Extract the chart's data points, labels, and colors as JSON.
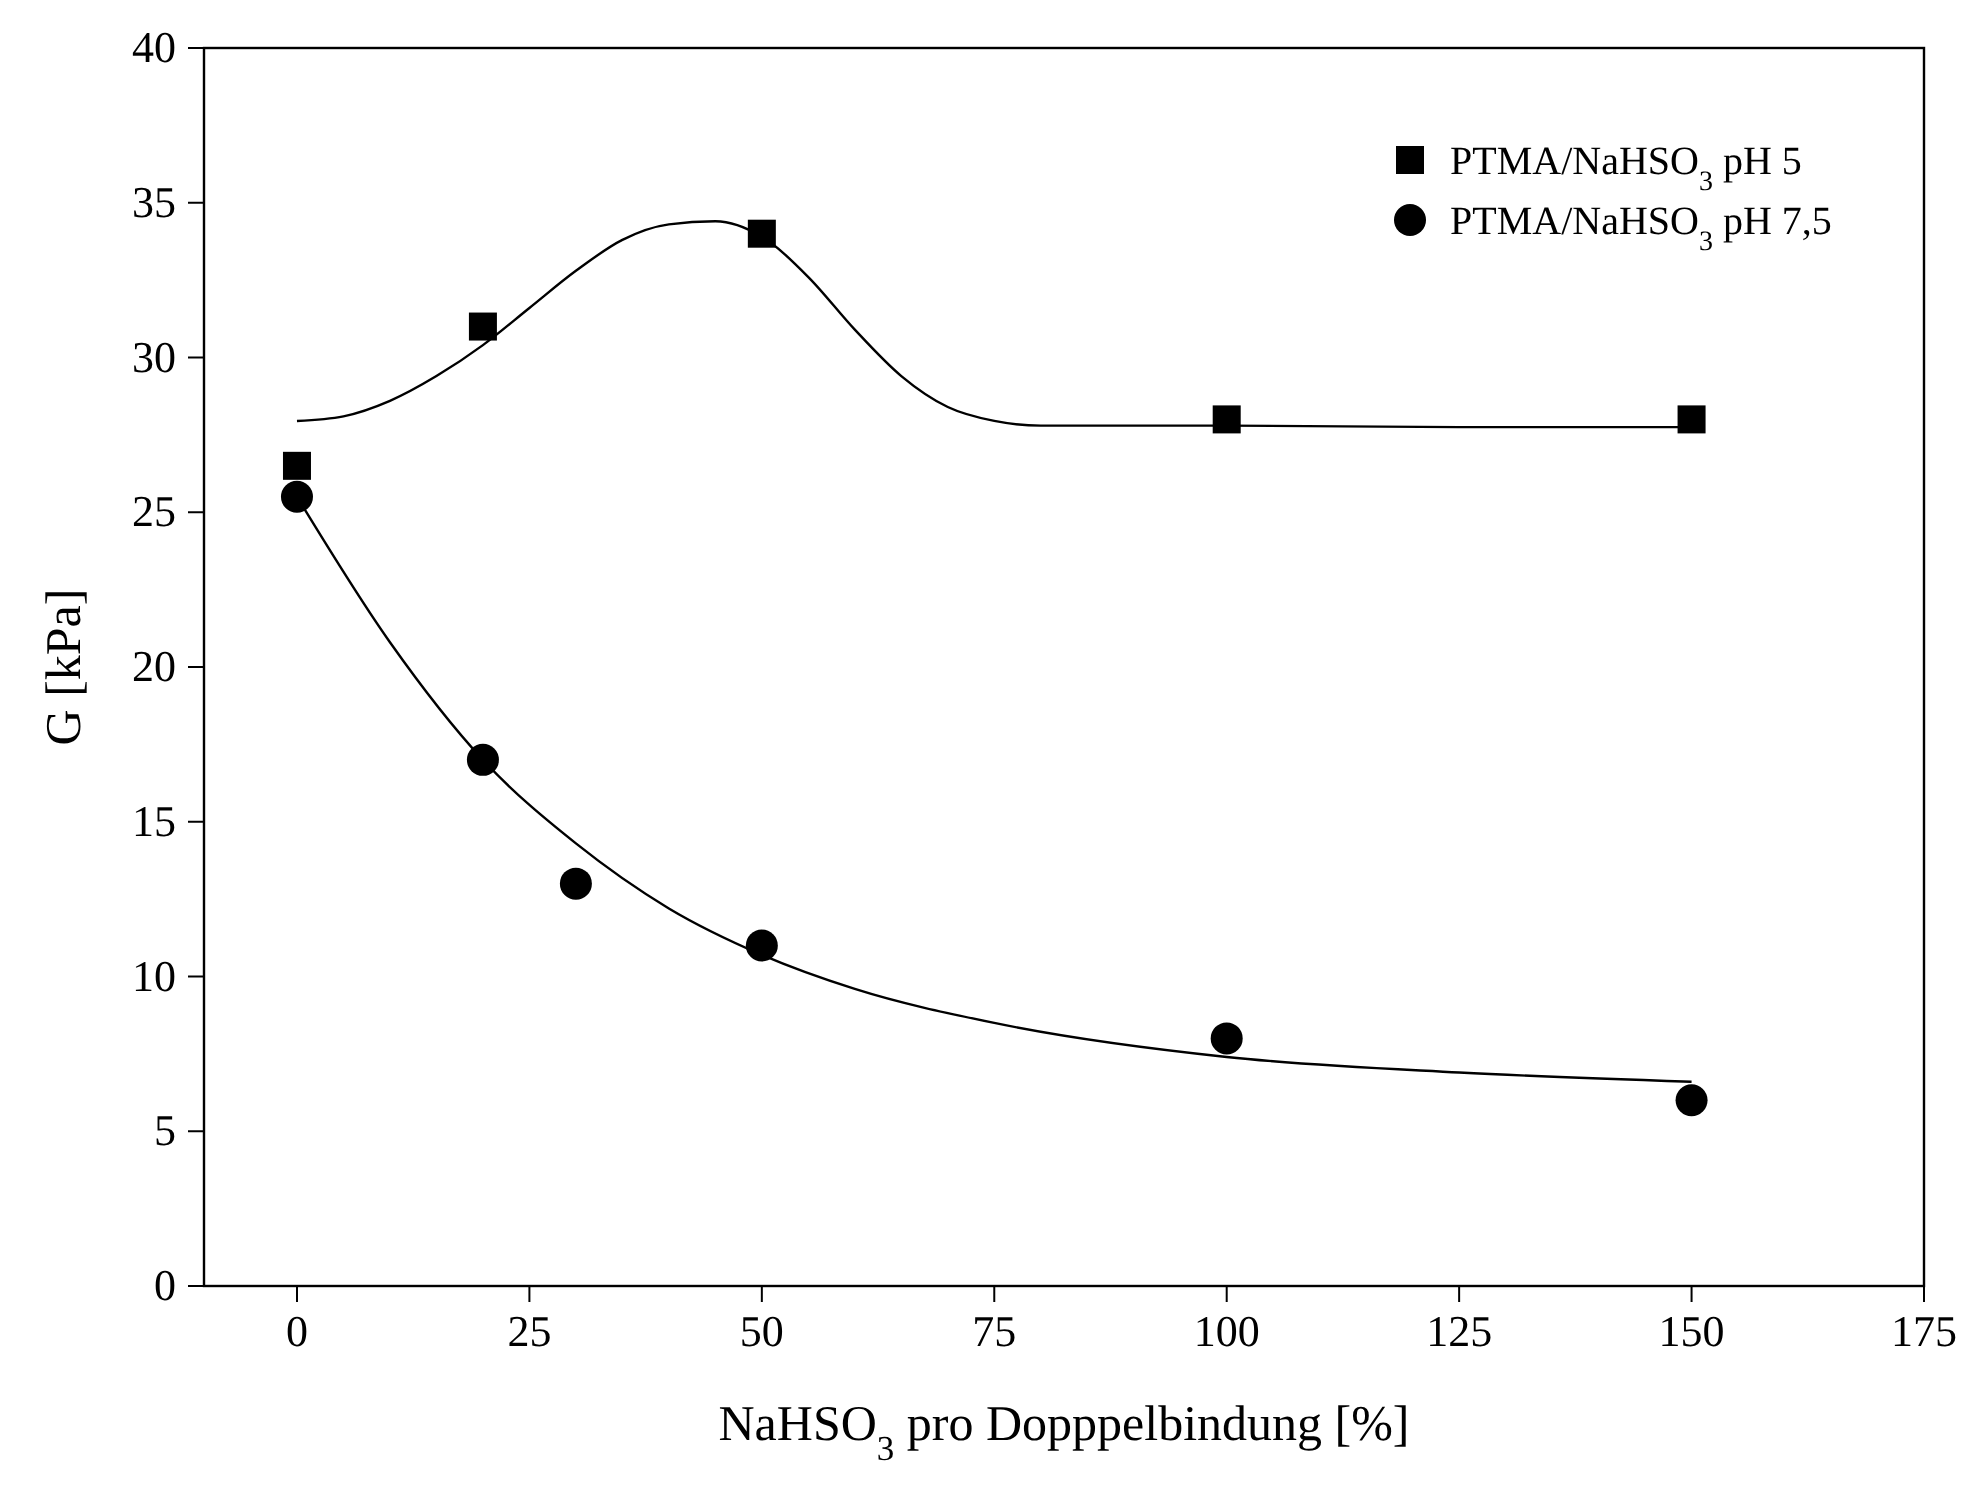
{
  "chart_data": {
    "type": "scatter",
    "xlabel": "NaHSO$_{3}$ pro Dopppelbindung [%]",
    "ylabel": "G [kPa]",
    "xlim": [
      -10,
      175
    ],
    "xticks": [
      0,
      25,
      50,
      75,
      100,
      125,
      150,
      175
    ],
    "ylim": [
      0,
      40
    ],
    "yticks": [
      0,
      5,
      10,
      15,
      20,
      25,
      30,
      35,
      40
    ],
    "grid": false,
    "legend": "top right",
    "series": [
      {
        "name": "PTMA/NaHSO$_{3}$ pH 5",
        "color": "#000000",
        "marker": "square",
        "x": [
          0,
          20,
          50,
          100,
          150
        ],
        "values": [
          26.5,
          31,
          34,
          28,
          28
        ]
      },
      {
        "name": "PTMA/NaHSO$_{3}$ pH 7,5",
        "color": "#000000",
        "marker": "circle",
        "x": [
          0,
          20,
          30,
          50,
          100,
          150
        ],
        "values": [
          25.5,
          17,
          13,
          11,
          8,
          6
        ]
      },
      {
        "color": "#000000",
        "type": "line",
        "marker": "none",
        "line_style": "solid",
        "x": [
          0,
          5,
          10,
          15,
          20,
          25,
          30,
          35,
          40,
          45,
          50,
          55,
          60,
          65,
          70,
          75,
          80,
          90,
          100,
          125,
          150
        ],
        "values": [
          27.95,
          28.1,
          28.6,
          29.4,
          30.4,
          31.6,
          32.8,
          33.8,
          34.3,
          34.4,
          33.9,
          32.6,
          30.9,
          29.4,
          28.4,
          27.95,
          27.8,
          27.8,
          27.8,
          27.75,
          27.75
        ]
      },
      {
        "color": "#000000",
        "type": "line",
        "marker": "none",
        "line_style": "solid",
        "x": [
          0,
          10,
          20,
          30,
          40,
          50,
          60,
          75,
          100,
          125,
          150
        ],
        "values": [
          25.5,
          20.8,
          17,
          14.3,
          12.2,
          10.7,
          9.6,
          8.5,
          7.4,
          6.9,
          6.6
        ]
      }
    ]
  }
}
